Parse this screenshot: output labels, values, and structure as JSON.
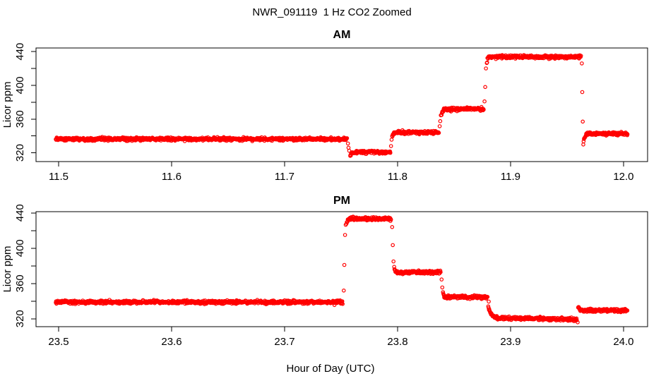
{
  "figure": {
    "title": "NWR_091119  1 Hz CO2 Zoomed",
    "xlabel": "Hour of Day (UTC)",
    "point_color": "#ff0000",
    "axis_color": "#000000",
    "background": "#ffffff"
  },
  "chart_data": [
    {
      "type": "scatter",
      "title": "AM",
      "ylabel": "Licor ppm",
      "xlabel": "",
      "marker": "open-circle",
      "grid": false,
      "legend": "none",
      "sample_rate_hz": 1,
      "xlim": [
        11.48,
        12.0213
      ],
      "ylim": [
        309.6,
        444.3
      ],
      "xticks": [
        11.5,
        11.6,
        11.7,
        11.8,
        11.9,
        12.0
      ],
      "yticks_major": [
        320,
        360,
        400,
        440
      ],
      "yticks_minor": [
        340,
        380,
        420
      ],
      "segments": [
        {
          "t0": 11.4975,
          "t1": 11.7556,
          "v": 336.3
        },
        {
          "t0": 11.7581,
          "t1": 11.7938,
          "v": 320.8,
          "v0": 316.5,
          "tau": 0.0012
        },
        {
          "t0": 11.7952,
          "t1": 11.8368,
          "v": 344.2,
          "v0": 339.0,
          "tau": 0.001
        },
        {
          "t0": 11.839,
          "t1": 11.8765,
          "v": 372.0,
          "v0": 366.0,
          "tau": 0.0008
        },
        {
          "t0": 11.879,
          "t1": 11.9627,
          "v": 433.8,
          "v0": 427.0,
          "tau": 0.0008
        },
        {
          "t0": 11.9644,
          "t1": 12.0038,
          "v": 342.6,
          "v0": 331.5,
          "tau": 0.0012
        }
      ],
      "transition_points": [
        [
          11.7561,
          331.0
        ],
        [
          11.7566,
          326.0
        ],
        [
          11.7572,
          322.5
        ],
        [
          11.7942,
          328.0
        ],
        [
          11.7947,
          335.5
        ],
        [
          11.8373,
          351.5
        ],
        [
          11.8378,
          357.5
        ],
        [
          11.8383,
          364.5
        ],
        [
          11.877,
          381.0
        ],
        [
          11.8776,
          398.0
        ],
        [
          11.8782,
          420.0
        ],
        [
          11.9631,
          426.0
        ],
        [
          11.9635,
          392.0
        ],
        [
          11.9639,
          357.0
        ]
      ]
    },
    {
      "type": "scatter",
      "title": "PM",
      "ylabel": "Licor ppm",
      "xlabel": "Hour of Day (UTC)",
      "marker": "open-circle",
      "grid": false,
      "legend": "none",
      "sample_rate_hz": 1,
      "xlim": [
        23.48,
        24.0213
      ],
      "ylim": [
        311.0,
        441.4
      ],
      "xticks": [
        23.5,
        23.6,
        23.7,
        23.8,
        23.9,
        24.0
      ],
      "yticks_major": [
        320,
        360,
        400,
        440
      ],
      "yticks_minor": [
        340,
        380,
        420
      ],
      "segments": [
        {
          "t0": 23.4975,
          "t1": 23.7516,
          "v": 338.8
        },
        {
          "t0": 23.7548,
          "t1": 23.7945,
          "v": 433.3,
          "v0": 428.0,
          "tau": 0.0008
        },
        {
          "t0": 23.797,
          "t1": 23.8385,
          "v": 372.6,
          "v0": 377.5,
          "tau": 0.0008
        },
        {
          "t0": 23.8402,
          "t1": 23.88,
          "v": 344.6,
          "v0": 349.5,
          "tau": 0.0008
        },
        {
          "t0": 23.8803,
          "t1": 23.8918,
          "v": 320.2,
          "v0": 333.5,
          "tau": 0.0028
        },
        {
          "t0": 23.892,
          "t1": 23.959,
          "v": 320.8,
          "v1": 319.4
        },
        {
          "t0": 23.9598,
          "t1": 24.0038,
          "v": 329.4,
          "v0": 333.5,
          "tau": 0.0015
        }
      ],
      "transition_points": [
        [
          23.7524,
          352.0
        ],
        [
          23.7529,
          381.0
        ],
        [
          23.7535,
          415.0
        ],
        [
          23.7541,
          426.5
        ],
        [
          23.7952,
          424.0
        ],
        [
          23.7958,
          403.5
        ],
        [
          23.7964,
          385.0
        ],
        [
          23.839,
          364.5
        ],
        [
          23.8396,
          355.5
        ],
        [
          23.8807,
          339.5
        ],
        [
          23.9594,
          316.0
        ]
      ]
    }
  ]
}
